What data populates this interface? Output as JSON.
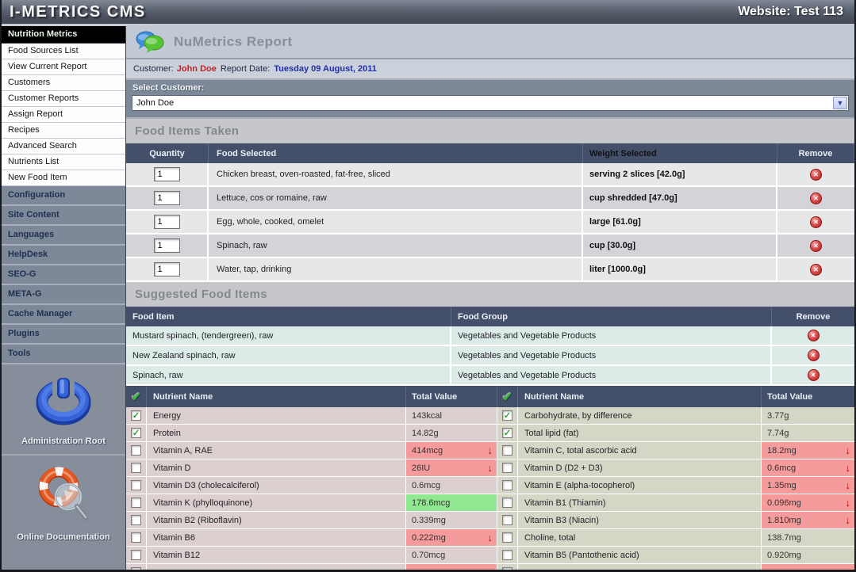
{
  "header": {
    "app_title": "I-METRICS CMS",
    "website_label": "Website: Test 113"
  },
  "sidebar": {
    "section_header": "Nutrition Metrics",
    "items": [
      "Food Sources List",
      "View Current Report",
      "Customers",
      "Customer Reports",
      "Assign Report",
      "Recipes",
      "Advanced Search",
      "Nutrients List",
      "New Food Item"
    ],
    "admin_items": [
      "Configuration",
      "Site Content",
      "Languages",
      "HelpDesk",
      "SEO-G",
      "META-G",
      "Cache Manager",
      "Plugins",
      "Tools"
    ],
    "admin_root_label": "Administration Root",
    "online_doc_label": "Online Documentation"
  },
  "report": {
    "title": "NuMetrics Report",
    "customer_label": "Customer:",
    "customer_name": "John Doe",
    "report_date_label": "Report Date:",
    "report_date": "Tuesday 09 August, 2011",
    "select_customer_label": "Select Customer:",
    "selected_customer": "John Doe"
  },
  "food_items": {
    "section_title": "Food Items Taken",
    "headers": {
      "quantity": "Quantity",
      "food": "Food Selected",
      "weight": "Weight Selected",
      "remove": "Remove"
    },
    "rows": [
      {
        "quantity": "1",
        "food": "Chicken breast, oven-roasted, fat-free, sliced",
        "weight": "serving 2 slices [42.0g]"
      },
      {
        "quantity": "1",
        "food": "Lettuce, cos or romaine, raw",
        "weight": "cup shredded [47.0g]"
      },
      {
        "quantity": "1",
        "food": "Egg, whole, cooked, omelet",
        "weight": "large [61.0g]"
      },
      {
        "quantity": "1",
        "food": "Spinach, raw",
        "weight": "cup [30.0g]"
      },
      {
        "quantity": "1",
        "food": "Water, tap, drinking",
        "weight": "liter [1000.0g]"
      }
    ]
  },
  "suggested": {
    "section_title": "Suggested Food Items",
    "headers": {
      "item": "Food Item",
      "group": "Food Group",
      "remove": "Remove"
    },
    "rows": [
      {
        "item": "Mustard spinach, (tendergreen), raw",
        "group": "Vegetables and Vegetable Products"
      },
      {
        "item": "New Zealand spinach, raw",
        "group": "Vegetables and Vegetable Products"
      },
      {
        "item": "Spinach, raw",
        "group": "Vegetables and Vegetable Products"
      }
    ]
  },
  "nutrients": {
    "header_name": "Nutrient Name",
    "header_value": "Total Value",
    "rows": [
      {
        "left": {
          "checked": true,
          "name": "Energy",
          "value": "143kcal",
          "flag": "none"
        },
        "right": {
          "checked": true,
          "name": "Carbohydrate, by difference",
          "value": "3.77g",
          "flag": "none"
        }
      },
      {
        "left": {
          "checked": true,
          "name": "Protein",
          "value": "14.82g",
          "flag": "none"
        },
        "right": {
          "checked": true,
          "name": "Total lipid (fat)",
          "value": "7.74g",
          "flag": "none"
        }
      },
      {
        "left": {
          "checked": false,
          "name": "Vitamin A, RAE",
          "value": "414mcg",
          "flag": "low"
        },
        "right": {
          "checked": false,
          "name": "Vitamin C, total ascorbic acid",
          "value": "18.2mg",
          "flag": "low"
        }
      },
      {
        "left": {
          "checked": false,
          "name": "Vitamin D",
          "value": "26IU",
          "flag": "low"
        },
        "right": {
          "checked": false,
          "name": "Vitamin D (D2 + D3)",
          "value": "0.6mcg",
          "flag": "low"
        }
      },
      {
        "left": {
          "checked": false,
          "name": "Vitamin D3 (cholecalciferol)",
          "value": "0.6mcg",
          "flag": "none"
        },
        "right": {
          "checked": false,
          "name": "Vitamin E (alpha-tocopherol)",
          "value": "1.35mg",
          "flag": "low"
        }
      },
      {
        "left": {
          "checked": false,
          "name": "Vitamin K (phylloquinone)",
          "value": "178.6mcg",
          "flag": "good"
        },
        "right": {
          "checked": false,
          "name": "Vitamin B1 (Thiamin)",
          "value": "0.096mg",
          "flag": "low"
        }
      },
      {
        "left": {
          "checked": false,
          "name": "Vitamin B2 (Riboflavin)",
          "value": "0.339mg",
          "flag": "none"
        },
        "right": {
          "checked": false,
          "name": "Vitamin B3 (Niacin)",
          "value": "1.810mg",
          "flag": "low"
        }
      },
      {
        "left": {
          "checked": false,
          "name": "Vitamin B6",
          "value": "0.222mg",
          "flag": "low"
        },
        "right": {
          "checked": false,
          "name": "Choline, total",
          "value": "138.7mg",
          "flag": "none"
        }
      },
      {
        "left": {
          "checked": false,
          "name": "Vitamin B12",
          "value": "0.70mcg",
          "flag": "none"
        },
        "right": {
          "checked": false,
          "name": "Vitamin B5 (Pantothenic acid)",
          "value": "0.920mg",
          "flag": "none"
        }
      },
      {
        "left": {
          "checked": false,
          "name": "",
          "value": "",
          "flag": "low"
        },
        "right": {
          "checked": false,
          "name": "",
          "value": "",
          "flag": "low"
        }
      }
    ]
  },
  "icons": {
    "report_icon": "speech-bubbles",
    "remove_icon": "red-x-circle",
    "low_value_icon": "red-down-arrow",
    "header_check_icon": "green-check"
  },
  "colors": {
    "table_header_bg": "#445069",
    "flag_low_bg": "#f69b9b",
    "flag_good_bg": "#90e890",
    "customer_name_red": "#c92222",
    "report_date_blue": "#1f2fa6"
  }
}
